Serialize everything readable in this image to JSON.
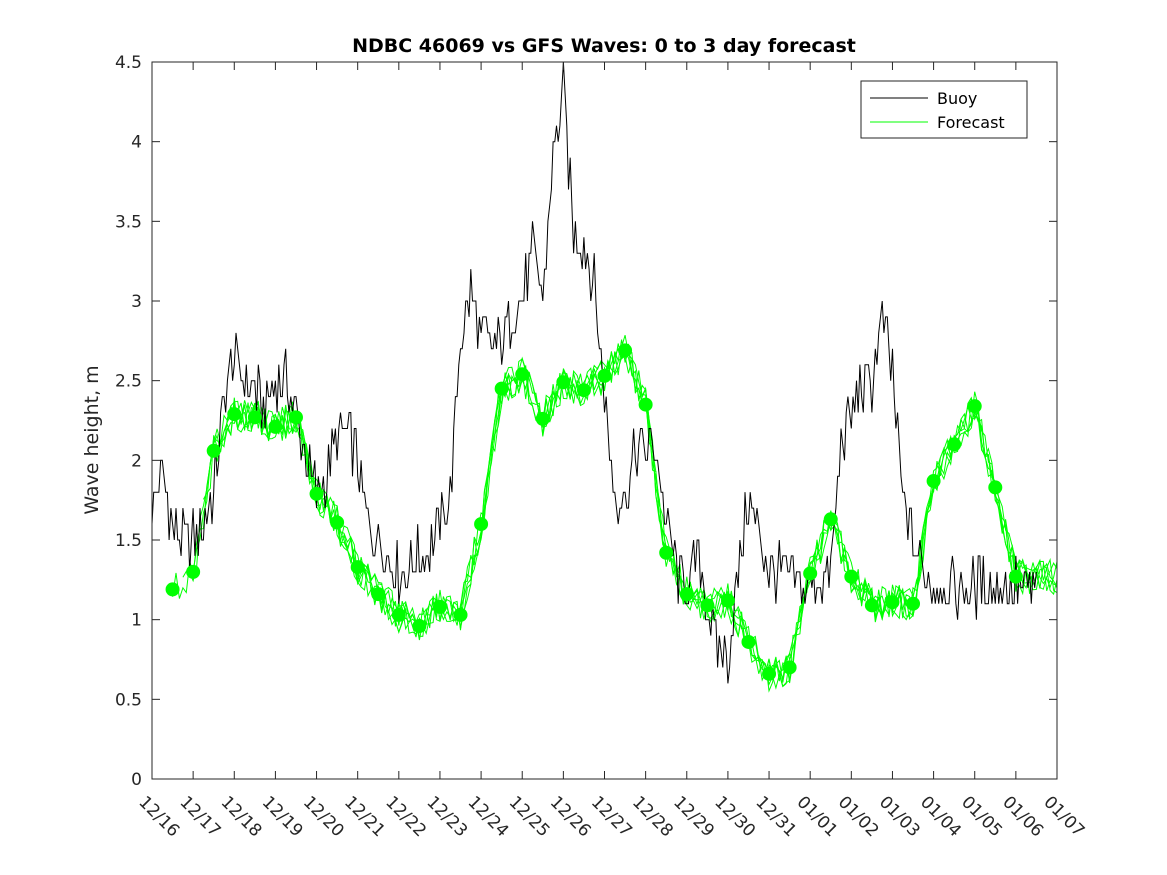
{
  "chart_data": {
    "type": "line",
    "title": "NDBC 46069 vs GFS Waves: 0 to 3 day forecast",
    "xlabel": "",
    "ylabel": "Wave height, m",
    "ylim": [
      0,
      4.5
    ],
    "yticks": [
      0,
      0.5,
      1,
      1.5,
      2,
      2.5,
      3,
      3.5,
      4,
      4.5
    ],
    "ytick_labels": [
      "0",
      "0.5",
      "1",
      "1.5",
      "2",
      "2.5",
      "3",
      "3.5",
      "4",
      "4.5"
    ],
    "xlim_days": [
      0,
      22
    ],
    "xtick_labels": [
      "12/16",
      "12/17",
      "12/18",
      "12/19",
      "12/20",
      "12/21",
      "12/22",
      "12/23",
      "12/24",
      "12/25",
      "12/26",
      "12/27",
      "12/28",
      "12/29",
      "12/30",
      "12/31",
      "01/01",
      "01/02",
      "01/03",
      "01/04",
      "01/05",
      "01/06",
      "01/07"
    ],
    "legend": {
      "position": "top-right",
      "entries": [
        {
          "label": "Buoy",
          "color": "#000000"
        },
        {
          "label": "Forecast",
          "color": "#00ff00"
        }
      ]
    },
    "colors": {
      "buoy": "#000000",
      "forecast": "#00ff00",
      "axis": "#262626"
    },
    "series": [
      {
        "name": "Buoy",
        "x": [
          0,
          0.25,
          0.5,
          0.75,
          1,
          1.25,
          1.5,
          1.75,
          2,
          2.25,
          2.5,
          2.75,
          3,
          3.25,
          3.5,
          3.75,
          4,
          4.25,
          4.5,
          4.75,
          5,
          5.25,
          5.5,
          5.75,
          6,
          6.25,
          6.5,
          6.75,
          7,
          7.25,
          7.5,
          7.75,
          8,
          8.25,
          8.5,
          8.75,
          9,
          9.25,
          9.5,
          9.75,
          10,
          10.25,
          10.5,
          10.75,
          11,
          11.25,
          11.5,
          11.75,
          12,
          12.25,
          12.5,
          12.75,
          13,
          13.25,
          13.5,
          13.75,
          14,
          14.25,
          14.5,
          14.75,
          15,
          15.25,
          15.5,
          15.75,
          16,
          16.25,
          16.5,
          16.75,
          17,
          17.25,
          17.5,
          17.75,
          18,
          18.25,
          18.5,
          18.75,
          19,
          19.25,
          19.5,
          19.75,
          20,
          20.25,
          20.5,
          20.75,
          21,
          21.25,
          21.5
        ],
        "values": [
          1.7,
          1.9,
          1.6,
          1.5,
          1.5,
          1.6,
          1.8,
          2.4,
          2.65,
          2.5,
          2.45,
          2.3,
          2.5,
          2.5,
          2.3,
          2.0,
          1.8,
          1.9,
          2.15,
          2.2,
          2.0,
          1.6,
          1.5,
          1.4,
          1.3,
          1.3,
          1.4,
          1.45,
          1.6,
          1.8,
          2.75,
          3.05,
          2.8,
          2.7,
          2.75,
          2.9,
          3.0,
          3.3,
          3.0,
          3.9,
          4.3,
          3.4,
          3.35,
          3.1,
          2.4,
          1.8,
          1.75,
          2.05,
          2.1,
          2.1,
          1.6,
          1.3,
          1.2,
          1.4,
          1.1,
          0.8,
          0.75,
          1.3,
          1.75,
          1.55,
          1.3,
          1.3,
          1.3,
          1.2,
          1.2,
          1.25,
          1.3,
          2.1,
          2.3,
          2.45,
          2.5,
          2.9,
          2.55,
          1.75,
          1.5,
          1.3,
          1.2,
          1.2,
          1.2,
          1.2,
          1.2,
          1.2,
          1.2,
          1.2,
          1.2,
          1.2,
          1.2
        ]
      },
      {
        "name": "Forecast",
        "x": [
          0.5,
          1.0,
          1.5,
          2.0,
          2.5,
          3.0,
          3.5,
          4.0,
          4.5,
          5.0,
          5.5,
          6.0,
          6.5,
          7.0,
          7.5,
          8.0,
          8.5,
          9.0,
          9.5,
          10.0,
          10.5,
          11.0,
          11.5,
          12.0,
          12.5,
          13.0,
          13.5,
          14.0,
          14.5,
          15.0,
          15.5,
          16.0,
          16.5,
          17.0,
          17.5,
          18.0,
          18.5,
          19.0,
          19.5,
          20.0,
          20.5,
          21.0
        ],
        "values": [
          1.19,
          1.3,
          2.06,
          2.29,
          2.27,
          2.21,
          2.27,
          1.79,
          1.61,
          1.33,
          1.16,
          1.03,
          0.96,
          1.08,
          1.03,
          1.6,
          2.45,
          2.54,
          2.26,
          2.49,
          2.44,
          2.53,
          2.69,
          2.35,
          1.42,
          1.16,
          1.09,
          1.12,
          0.86,
          0.66,
          0.7,
          1.29,
          1.63,
          1.27,
          1.09,
          1.11,
          1.1,
          1.87,
          2.1,
          2.34,
          1.83,
          1.27
        ]
      }
    ]
  }
}
